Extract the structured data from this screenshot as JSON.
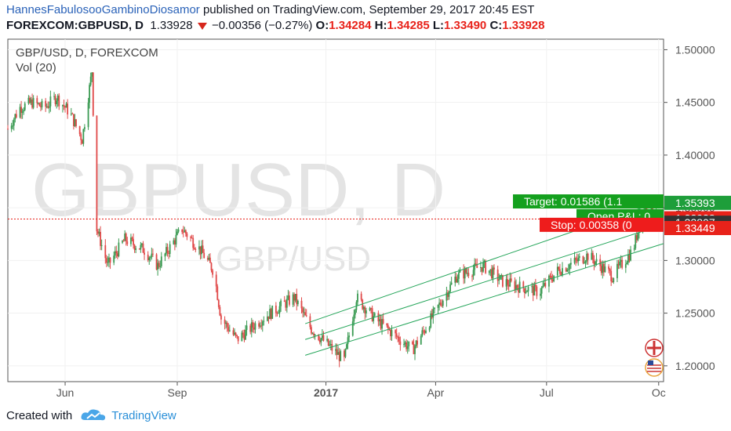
{
  "header": {
    "author": "HannesFabulosooGambinoDiosamor",
    "published_text": "published on TradingView.com, September 29, 2017 20:45 EST",
    "symbol": "FOREXCOM:GBPUSD, D",
    "last": "1.33928",
    "change": "−0.00356 (−0.27%)",
    "open_label": "O:",
    "open": "1.34284",
    "high_label": "H:",
    "high": "1.34285",
    "low_label": "L:",
    "low": "1.33490",
    "close_label": "C:",
    "close": "1.33928"
  },
  "legend": {
    "title": "GBP/USD, D, FOREXCOM",
    "volume": "Vol (20)"
  },
  "watermark": {
    "big": "GBPUSD, D",
    "small": "GBP/USD"
  },
  "chart_data": {
    "type": "candlestick",
    "y_axis": {
      "ticks": [
        "1.50000",
        "1.45000",
        "1.40000",
        "1.35000",
        "1.30000",
        "1.25000",
        "1.20000"
      ],
      "tick_values": [
        1.5,
        1.45,
        1.4,
        1.35,
        1.3,
        1.25,
        1.2
      ],
      "range": [
        1.185,
        1.51
      ]
    },
    "x_axis": {
      "ticks": [
        "Jun",
        "Sep",
        "2017",
        "Apr",
        "Jul",
        "Oc"
      ],
      "tick_positions": [
        "2016-06-01",
        "2016-09-01",
        "2017-01-01",
        "2017-04-01",
        "2017-07-01",
        "2017-10-01"
      ],
      "range": [
        "2016-04-15",
        "2017-10-05"
      ]
    },
    "price_path": [
      [
        "2016-04-15",
        1.425
      ],
      [
        "2016-04-25",
        1.445
      ],
      [
        "2016-05-05",
        1.45
      ],
      [
        "2016-05-15",
        1.445
      ],
      [
        "2016-05-25",
        1.455
      ],
      [
        "2016-06-05",
        1.44
      ],
      [
        "2016-06-15",
        1.415
      ],
      [
        "2016-06-23",
        1.48
      ],
      [
        "2016-06-27",
        1.33
      ],
      [
        "2016-07-06",
        1.295
      ],
      [
        "2016-07-20",
        1.32
      ],
      [
        "2016-08-05",
        1.31
      ],
      [
        "2016-08-16",
        1.295
      ],
      [
        "2016-09-05",
        1.33
      ],
      [
        "2016-09-20",
        1.31
      ],
      [
        "2016-10-01",
        1.29
      ],
      [
        "2016-10-07",
        1.245
      ],
      [
        "2016-10-20",
        1.225
      ],
      [
        "2016-11-10",
        1.245
      ],
      [
        "2016-12-06",
        1.265
      ],
      [
        "2016-12-20",
        1.235
      ],
      [
        "2017-01-16",
        1.205
      ],
      [
        "2017-01-26",
        1.265
      ],
      [
        "2017-02-10",
        1.245
      ],
      [
        "2017-03-13",
        1.215
      ],
      [
        "2017-03-31",
        1.25
      ],
      [
        "2017-04-18",
        1.285
      ],
      [
        "2017-05-10",
        1.295
      ],
      [
        "2017-05-26",
        1.28
      ],
      [
        "2017-06-09",
        1.275
      ],
      [
        "2017-06-25",
        1.27
      ],
      [
        "2017-07-10",
        1.29
      ],
      [
        "2017-08-04",
        1.305
      ],
      [
        "2017-08-24",
        1.285
      ],
      [
        "2017-09-10",
        1.31
      ],
      [
        "2017-09-20",
        1.355
      ],
      [
        "2017-09-29",
        1.339
      ]
    ],
    "channel": {
      "start_date": "2016-12-15",
      "end_date": "2017-10-05",
      "upper": [
        1.24,
        1.357
      ],
      "middle": [
        1.225,
        1.334
      ],
      "lower": [
        1.21,
        1.316
      ]
    },
    "price_labels": [
      {
        "value": 1.35393,
        "text": "1.35393",
        "color": "#1e9e3a"
      },
      {
        "value": 1.33928,
        "text": "1.33928",
        "color": "#e8221a"
      },
      {
        "value": 1.33807,
        "text": "1.33807",
        "color": "#333333"
      },
      {
        "value": 1.33449,
        "text": "1.33449",
        "color": "#e8221a"
      }
    ],
    "position_labels": [
      {
        "text": "Target: 0.01586 (1.1",
        "color": "#14a01e",
        "value": 1.35603
      },
      {
        "text": "Open P&L: 0",
        "color": "#14a01e",
        "value": 1.34203
      },
      {
        "text": "Stop: 0.00358 (0",
        "color": "#ee1c1c",
        "value": 1.33383
      }
    ],
    "current_price": 1.33928,
    "colors": {
      "up": "#3a9a52",
      "down": "#e04848",
      "channel": "#26a65b"
    }
  },
  "footer": {
    "created_with": "Created with",
    "brand": "TradingView"
  }
}
